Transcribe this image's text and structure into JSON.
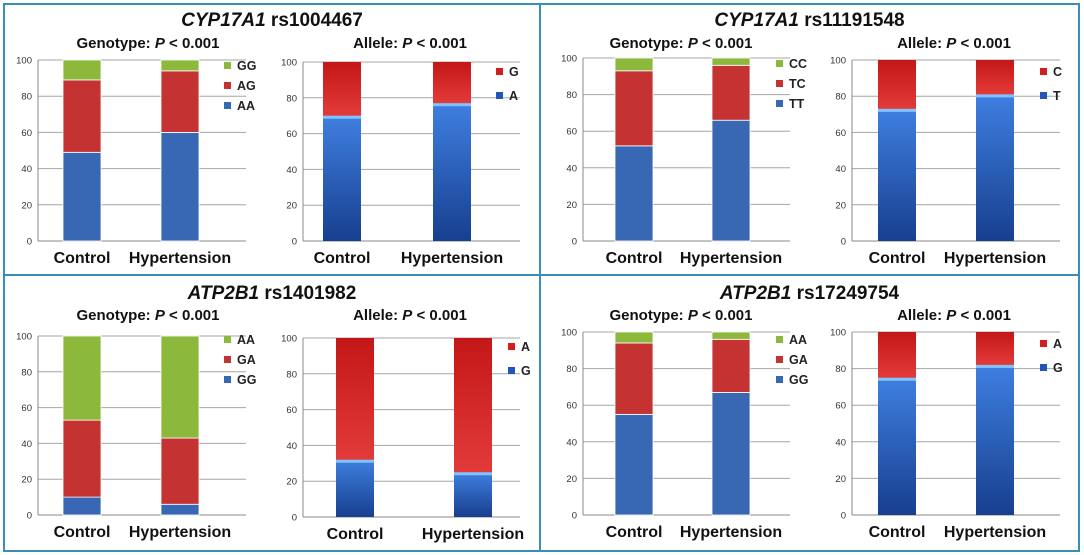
{
  "colors": {
    "frame": "#3a8fb7",
    "genotype_bottom": "#3867b3",
    "genotype_middle": "#c43232",
    "genotype_top": "#8cb83c",
    "allele_bottom": "#2156b8",
    "allele_top": "#d11f1f"
  },
  "panels": [
    {
      "gene": "CYP17A1",
      "snp": "rs1004467",
      "genotype_label": "Genotype:",
      "allele_label": "Allele:",
      "p_text": "P",
      "p_value": "< 0.001"
    },
    {
      "gene": "CYP17A1",
      "snp": "rs11191548",
      "genotype_label": "Genotype:",
      "allele_label": "Allele:",
      "p_text": "P",
      "p_value": "< 0.001"
    },
    {
      "gene": "ATP2B1",
      "snp": "rs1401982",
      "genotype_label": "Genotype:",
      "allele_label": "Allele:",
      "p_text": "P",
      "p_value": "< 0.001"
    },
    {
      "gene": "ATP2B1",
      "snp": "rs17249754",
      "genotype_label": "Genotype:",
      "allele_label": "Allele:",
      "p_text": "P",
      "p_value": "< 0.001"
    }
  ],
  "chart_data": [
    {
      "type": "bar",
      "stacked": true,
      "title": "Genotype: P < 0.001",
      "categories": [
        "Control",
        "Hypertension"
      ],
      "ylim": [
        0,
        100
      ],
      "yticks": [
        0,
        20,
        40,
        60,
        80,
        100
      ],
      "legend_position": "top-right",
      "series": [
        {
          "name": "AA",
          "values": [
            49,
            60
          ]
        },
        {
          "name": "AG",
          "values": [
            40,
            34
          ]
        },
        {
          "name": "GG",
          "values": [
            11,
            6
          ]
        }
      ]
    },
    {
      "type": "bar",
      "stacked": true,
      "title": "Allele: P < 0.001",
      "categories": [
        "Control",
        "Hypertension"
      ],
      "ylim": [
        0,
        100
      ],
      "yticks": [
        0,
        20,
        40,
        60,
        80,
        100
      ],
      "legend_position": "top-right",
      "series": [
        {
          "name": "A",
          "values": [
            70,
            77
          ]
        },
        {
          "name": "G",
          "values": [
            30,
            23
          ]
        }
      ]
    },
    {
      "type": "bar",
      "stacked": true,
      "title": "Genotype: P < 0.001",
      "categories": [
        "Control",
        "Hypertension"
      ],
      "ylim": [
        0,
        100
      ],
      "yticks": [
        0,
        20,
        40,
        60,
        80,
        100
      ],
      "legend_position": "top-right",
      "series": [
        {
          "name": "TT",
          "values": [
            52,
            66
          ]
        },
        {
          "name": "TC",
          "values": [
            41,
            30
          ]
        },
        {
          "name": "CC",
          "values": [
            7,
            4
          ]
        }
      ]
    },
    {
      "type": "bar",
      "stacked": true,
      "title": "Allele: P < 0.001",
      "categories": [
        "Control",
        "Hypertension"
      ],
      "ylim": [
        0,
        100
      ],
      "yticks": [
        0,
        20,
        40,
        60,
        80,
        100
      ],
      "legend_position": "top-right",
      "series": [
        {
          "name": "T",
          "values": [
            73,
            81
          ]
        },
        {
          "name": "C",
          "values": [
            27,
            19
          ]
        }
      ]
    },
    {
      "type": "bar",
      "stacked": true,
      "title": "Genotype: P < 0.001",
      "categories": [
        "Control",
        "Hypertension"
      ],
      "ylim": [
        0,
        100
      ],
      "yticks": [
        0,
        20,
        40,
        60,
        80,
        100
      ],
      "legend_position": "top-right",
      "series": [
        {
          "name": "GG",
          "values": [
            10,
            6
          ]
        },
        {
          "name": "GA",
          "values": [
            43,
            37
          ]
        },
        {
          "name": "AA",
          "values": [
            47,
            57
          ]
        }
      ]
    },
    {
      "type": "bar",
      "stacked": true,
      "title": "Allele: P < 0.001",
      "categories": [
        "Control",
        "Hypertension"
      ],
      "ylim": [
        0,
        100
      ],
      "yticks": [
        0,
        20,
        40,
        60,
        80,
        100
      ],
      "legend_position": "top-right",
      "series": [
        {
          "name": "G",
          "values": [
            32,
            25
          ]
        },
        {
          "name": "A",
          "values": [
            68,
            75
          ]
        }
      ]
    },
    {
      "type": "bar",
      "stacked": true,
      "title": "Genotype: P < 0.001",
      "categories": [
        "Control",
        "Hypertension"
      ],
      "ylim": [
        0,
        100
      ],
      "yticks": [
        0,
        20,
        40,
        60,
        80,
        100
      ],
      "legend_position": "top-right",
      "series": [
        {
          "name": "GG",
          "values": [
            55,
            67
          ]
        },
        {
          "name": "GA",
          "values": [
            39,
            29
          ]
        },
        {
          "name": "AA",
          "values": [
            6,
            4
          ]
        }
      ]
    },
    {
      "type": "bar",
      "stacked": true,
      "title": "Allele: P < 0.001",
      "categories": [
        "Control",
        "Hypertension"
      ],
      "ylim": [
        0,
        100
      ],
      "yticks": [
        0,
        20,
        40,
        60,
        80,
        100
      ],
      "legend_position": "top-right",
      "series": [
        {
          "name": "G",
          "values": [
            75,
            82
          ]
        },
        {
          "name": "A",
          "values": [
            25,
            18
          ]
        }
      ]
    }
  ]
}
